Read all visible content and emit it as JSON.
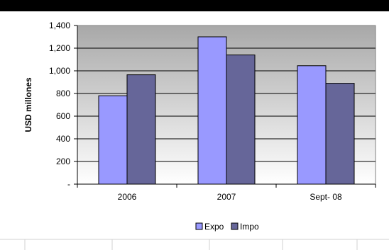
{
  "chart_data": {
    "type": "bar",
    "categories": [
      "2006",
      "2007",
      "Sept- 08"
    ],
    "series": [
      {
        "name": "Expo",
        "color": "#9999ff",
        "values": [
          780,
          1300,
          1045
        ]
      },
      {
        "name": "Impo",
        "color": "#666699",
        "values": [
          965,
          1140,
          890
        ]
      }
    ],
    "ylabel": "USD millones",
    "ylim": [
      0,
      1400
    ],
    "yticks": [
      {
        "value": 0,
        "label": "-"
      },
      {
        "value": 200,
        "label": "200"
      },
      {
        "value": 400,
        "label": "400"
      },
      {
        "value": 600,
        "label": "600"
      },
      {
        "value": 800,
        "label": "800"
      },
      {
        "value": 1000,
        "label": "1,000"
      },
      {
        "value": 1200,
        "label": "1,200"
      },
      {
        "value": 1400,
        "label": "1,400"
      }
    ],
    "grid": true,
    "legend_position": "bottom"
  }
}
